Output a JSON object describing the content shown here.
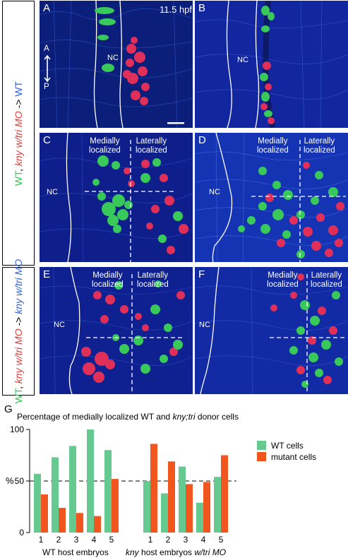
{
  "row_labels": {
    "top": [
      {
        "text": "WT",
        "color": "#39c45a"
      },
      {
        "text": ", ",
        "color": "#000000"
      },
      {
        "text": "kny w/tri MO",
        "color": "#e03a3a",
        "italic": true
      },
      {
        "text": " -> ",
        "color": "#000000"
      },
      {
        "text": "WT",
        "color": "#2f5fe0"
      }
    ],
    "bottom": [
      {
        "text": "WT",
        "color": "#39c45a"
      },
      {
        "text": ", ",
        "color": "#000000"
      },
      {
        "text": "kny w/tri MO",
        "color": "#e03a3a",
        "italic": true
      },
      {
        "text": " -> ",
        "color": "#000000"
      },
      {
        "text": "kny w/tri MO",
        "color": "#2f5fe0",
        "italic": true
      }
    ]
  },
  "panels": {
    "A": {
      "label": "A",
      "time": "11.5 hpf",
      "nc": "NC",
      "axis_a": "A",
      "axis_p": "P"
    },
    "B": {
      "label": "B",
      "nc": "NC"
    },
    "C": {
      "label": "C",
      "nc": "NC",
      "medial": "Medially\nlocalized",
      "lateral": "Laterally\nlocalized"
    },
    "D": {
      "label": "D",
      "nc": "NC",
      "medial": "Medially\nlocalized",
      "lateral": "Laterally\nlocalized"
    },
    "E": {
      "label": "E",
      "nc": "NC",
      "medial": "Medially\nlocalized",
      "lateral": "Laterally\nlocalized"
    },
    "F": {
      "label": "F",
      "nc": "NC",
      "medial": "Medially\nlocalized",
      "lateral": "Laterally\nlocalized"
    }
  },
  "colors": {
    "green_cells": "#38c95a",
    "red_cells": "#e0305a",
    "tissue": "#1d3fb0",
    "wt_bar": "#66c98f",
    "mutant_bar": "#f0561e"
  },
  "chart": {
    "panel_label": "G",
    "title_parts": [
      {
        "text": "Percentage of medially localized WT and ",
        "italic": false
      },
      {
        "text": "kny;tri",
        "italic": true
      },
      {
        "text": " donor cells",
        "italic": false
      }
    ],
    "group1_label": "WT host embryos",
    "group2_label_parts": [
      {
        "text": "kny",
        "italic": true
      },
      {
        "text": " host embryos ",
        "italic": false
      },
      {
        "text": "w/tri MO",
        "italic": true
      }
    ]
  },
  "chart_data": {
    "type": "bar",
    "ylabel": "%",
    "ylim": [
      0,
      100
    ],
    "yticks": [
      0,
      50,
      100
    ],
    "reference_line": 50,
    "groups": [
      {
        "name": "WT host embryos",
        "categories": [
          "1",
          "2",
          "3",
          "4",
          "5"
        ]
      },
      {
        "name": "kny host embryos w/tri MO",
        "categories": [
          "1",
          "2",
          "3",
          "4",
          "5"
        ]
      }
    ],
    "series": [
      {
        "name": "WT cells",
        "color": "#66c98f",
        "values": [
          [
            57,
            73,
            84,
            100,
            80
          ],
          [
            50,
            38,
            64,
            29,
            54
          ]
        ]
      },
      {
        "name": "mutant cells",
        "color": "#f0561e",
        "values": [
          [
            37,
            24,
            19,
            16,
            52
          ],
          [
            86,
            69,
            47,
            49,
            75
          ]
        ]
      }
    ],
    "legend": [
      "WT cells",
      "mutant cells"
    ],
    "legend_position": "right"
  }
}
